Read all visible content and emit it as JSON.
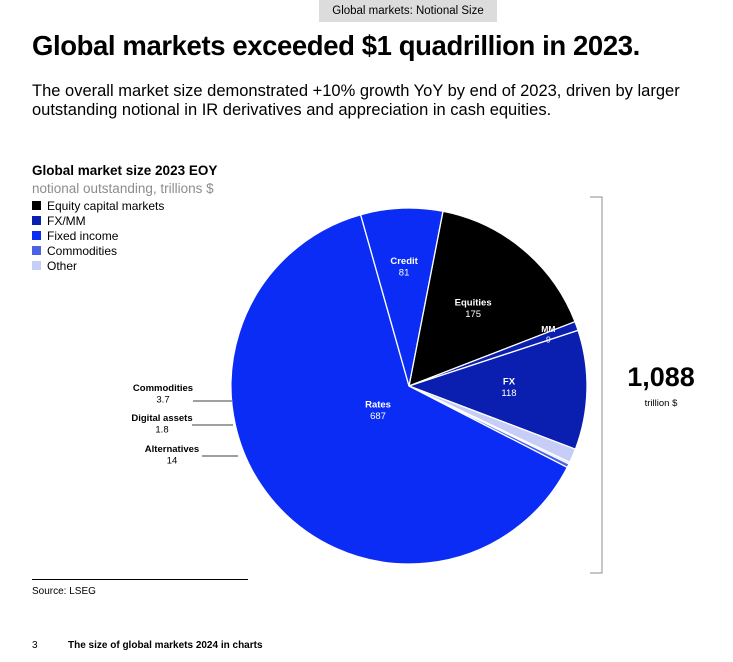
{
  "header_tag": "Global markets: Notional Size",
  "title": "Global markets exceeded $1 quadrillion in 2023.",
  "subtitle": "The overall market size demonstrated +10% growth YoY by end of 2023, driven by larger outstanding notional in IR derivatives and appreciation in cash equities.",
  "colors": {
    "equity": "#000000",
    "fxmm": "#0a1faf",
    "fixed_income": "#0b2cf5",
    "commodities": "#4b62e6",
    "other": "#c6cdf7"
  },
  "legend": [
    {
      "label": "Equity capital markets",
      "color": "#000000"
    },
    {
      "label": "FX/MM",
      "color": "#0a1faf"
    },
    {
      "label": "Fixed income",
      "color": "#0b2cf5"
    },
    {
      "label": "Commodities",
      "color": "#4b62e6"
    },
    {
      "label": "Other",
      "color": "#c6cdf7"
    }
  ],
  "chart_data": {
    "type": "pie",
    "title": "Global market size 2023 EOY",
    "subtitle": "notional outstanding, trillions $",
    "slices": [
      {
        "label": "Equities",
        "value": "175",
        "amount": 175,
        "group": "Equity capital markets",
        "color": "#000000",
        "label_color": "#ffffff"
      },
      {
        "label": "MM",
        "value": "9",
        "amount": 9,
        "group": "FX/MM",
        "color": "#0a1faf",
        "label_color": "#ffffff"
      },
      {
        "label": "FX",
        "value": "118",
        "amount": 118,
        "group": "FX/MM",
        "color": "#0a1faf",
        "label_color": "#ffffff"
      },
      {
        "label": "Alternatives",
        "value": "14",
        "amount": 14,
        "group": "Other",
        "color": "#c6cdf7",
        "label_color": "#000000"
      },
      {
        "label": "Digital assets",
        "value": "1.8",
        "amount": 1.8,
        "group": "Other",
        "color": "#c6cdf7",
        "label_color": "#000000"
      },
      {
        "label": "Commodities",
        "value": "3.7",
        "amount": 3.7,
        "group": "Commodities",
        "color": "#4b62e6",
        "label_color": "#000000"
      },
      {
        "label": "Rates",
        "value": "687",
        "amount": 687,
        "group": "Fixed income",
        "color": "#0b2cf5",
        "label_color": "#ffffff"
      },
      {
        "label": "Credit",
        "value": "81",
        "amount": 81,
        "group": "Fixed income",
        "color": "#0b2cf5",
        "label_color": "#ffffff"
      }
    ],
    "total": {
      "value": "1,088",
      "unit": "trillion $"
    }
  },
  "source": "Source: LSEG",
  "footer": {
    "page_number": "3",
    "title": "The size of global markets 2024 in charts"
  }
}
